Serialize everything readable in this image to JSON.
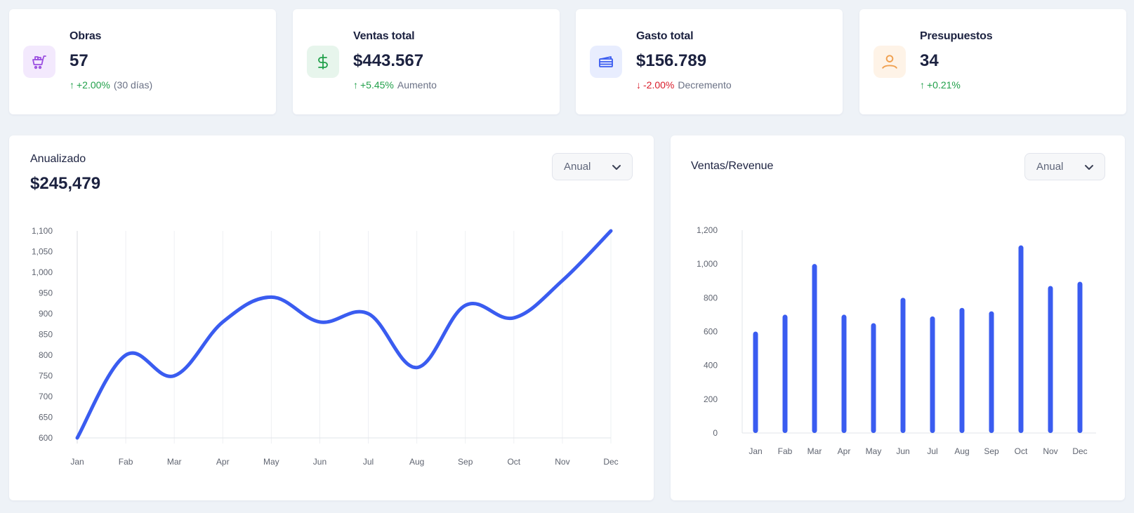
{
  "stats": [
    {
      "title": "Obras",
      "value": "57",
      "change": "+2.00%",
      "direction": "up",
      "note": "(30 días)",
      "icon": "shopping-cart-icon",
      "color": "#9b4fe0",
      "bg": "#f3e9fd"
    },
    {
      "title": "Ventas total",
      "value": "$443.567",
      "change": "+5.45%",
      "direction": "up",
      "note": "Aumento",
      "icon": "dollar-icon",
      "color": "#21a04a",
      "bg": "#e7f5ec"
    },
    {
      "title": "Gasto total",
      "value": "$156.789",
      "change": "-2.00%",
      "direction": "down",
      "note": "Decremento",
      "icon": "credit-card-icon",
      "color": "#3a5cf0",
      "bg": "#e8edfe"
    },
    {
      "title": "Presupuestos",
      "value": "34",
      "change": "+0.21%",
      "direction": "up",
      "note": "",
      "icon": "user-icon",
      "color": "#f0a050",
      "bg": "#fef3e7"
    }
  ],
  "annual_panel": {
    "title": "Anualizado",
    "value": "$245,479",
    "dropdown": {
      "selected": "Anual"
    }
  },
  "revenue_panel": {
    "title": "Ventas/Revenue",
    "dropdown": {
      "selected": "Anual"
    }
  },
  "chart_data": [
    {
      "type": "line",
      "title": "Anualizado",
      "categories": [
        "Jan",
        "Fab",
        "Mar",
        "Apr",
        "May",
        "Jun",
        "Jul",
        "Aug",
        "Sep",
        "Oct",
        "Nov",
        "Dec"
      ],
      "series": [
        {
          "name": "Anualizado",
          "values": [
            600,
            800,
            750,
            880,
            940,
            880,
            900,
            770,
            920,
            890,
            980,
            1100
          ],
          "color": "#3a5cf0"
        }
      ],
      "yticks": [
        600,
        650,
        700,
        750,
        800,
        850,
        900,
        950,
        1000,
        1050,
        1100
      ],
      "ytick_labels": [
        "600",
        "650",
        "700",
        "750",
        "800",
        "850",
        "900",
        "950",
        "1,000",
        "1,050",
        "1,100"
      ],
      "ylim": [
        600,
        1100
      ],
      "grid": "vertical",
      "xlabel": "",
      "ylabel": ""
    },
    {
      "type": "bar",
      "title": "Ventas/Revenue",
      "categories": [
        "Jan",
        "Fab",
        "Mar",
        "Apr",
        "May",
        "Jun",
        "Jul",
        "Aug",
        "Sep",
        "Oct",
        "Nov",
        "Dec"
      ],
      "series": [
        {
          "name": "Ventas",
          "values": [
            600,
            700,
            1000,
            700,
            650,
            800,
            690,
            740,
            720,
            1110,
            870,
            895
          ],
          "color": "#3a5cf0"
        }
      ],
      "yticks": [
        0,
        200,
        400,
        600,
        800,
        1000,
        1200
      ],
      "ytick_labels": [
        "0",
        "200",
        "400",
        "600",
        "800",
        "1,000",
        "1,200"
      ],
      "ylim": [
        0,
        1200
      ],
      "grid": "none",
      "xlabel": "",
      "ylabel": ""
    }
  ]
}
